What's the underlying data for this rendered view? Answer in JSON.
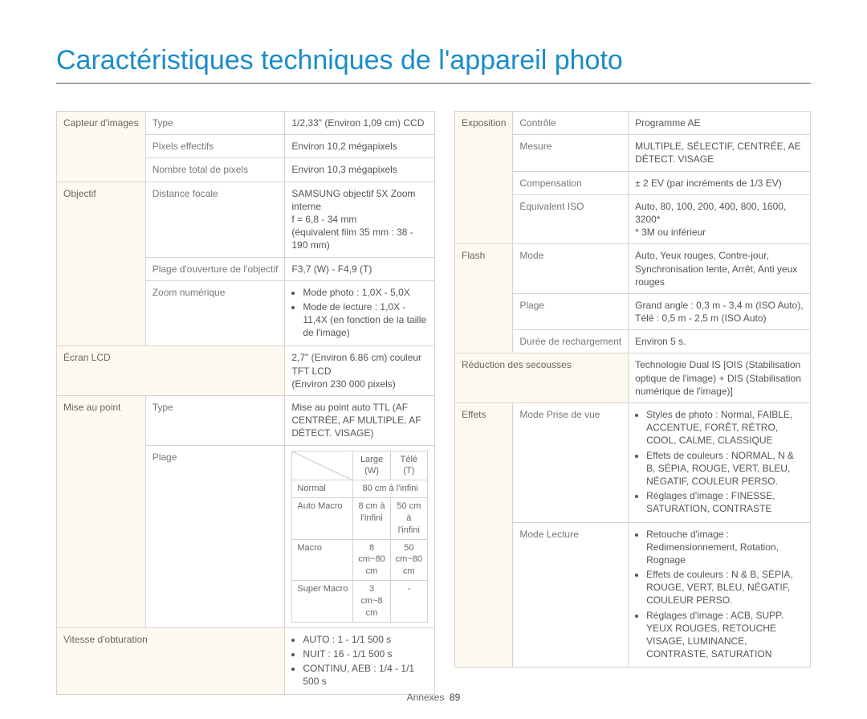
{
  "title": "Caractéristiques techniques de l'appareil photo",
  "footer": {
    "label": "Annexes",
    "page": "89"
  },
  "left": {
    "capteur": {
      "section": "Capteur d'images",
      "rows": [
        {
          "attr": "Type",
          "val": "1/2,33\" (Environ 1,09 cm) CCD"
        },
        {
          "attr": "Pixels effectifs",
          "val": "Environ 10,2 mégapixels"
        },
        {
          "attr": "Nombre total de pixels",
          "val": "Environ 10,3 mégapixels"
        }
      ]
    },
    "objectif": {
      "section": "Objectif",
      "rows": [
        {
          "attr": "Distance focale",
          "val": "SAMSUNG objectif 5X Zoom interne\nf = 6,8 - 34 mm\n(équivalent film 35 mm : 38 - 190 mm)"
        },
        {
          "attr": "Plage d'ouverture de l'objectif",
          "val": "F3,7 (W) - F4,9 (T)"
        },
        {
          "attr": "Zoom numérique",
          "bullets": [
            "Mode photo : 1,0X - 5,0X",
            "Mode de lecture : 1,0X - 11,4X (en fonction de la taille de l'image)"
          ]
        }
      ]
    },
    "ecran": {
      "section": "Écran LCD",
      "val": "2,7\" (Environ 6.86 cm) couleur TFT LCD\n(Environ 230 000 pixels)"
    },
    "mise": {
      "section": "Mise au point",
      "type_label": "Type",
      "type_val": "Mise au point auto TTL (AF CENTRÉE, AF MULTIPLE, AF DÉTECT. VISAGE)",
      "plage_label": "Plage",
      "range": {
        "cols": [
          "",
          "Large (W)",
          "Télé (T)"
        ],
        "rows": [
          {
            "h": "Normal",
            "w": "80 cm à l'infini",
            "t": "80 cm à l'infini",
            "merge": true
          },
          {
            "h": "Auto Macro",
            "w": "8 cm à l'infini",
            "t": "50 cm à l'infini"
          },
          {
            "h": "Macro",
            "w": "8 cm~80 cm",
            "t": "50 cm~80 cm"
          },
          {
            "h": "Super Macro",
            "w": "3 cm~8 cm",
            "t": "-"
          }
        ]
      }
    },
    "vitesse": {
      "section": "Vitesse d'obturation",
      "bullets": [
        "AUTO : 1 - 1/1 500 s",
        "NUIT : 16 - 1/1 500 s",
        "CONTINU, AEB : 1/4 - 1/1 500 s"
      ]
    }
  },
  "right": {
    "exposition": {
      "section": "Exposition",
      "rows": [
        {
          "attr": "Contrôle",
          "val": "Programme AE"
        },
        {
          "attr": "Mesure",
          "val": "MULTIPLE, SÉLECTIF, CENTRÉE, AE DÉTECT. VISAGE"
        },
        {
          "attr": "Compensation",
          "val": "± 2 EV (par incréments de 1/3 EV)"
        },
        {
          "attr": "Équivalent ISO",
          "val": "Auto, 80, 100, 200, 400, 800, 1600, 3200*\n* 3M ou inférieur"
        }
      ]
    },
    "flash": {
      "section": "Flash",
      "rows": [
        {
          "attr": "Mode",
          "val": "Auto, Yeux rouges, Contre-jour, Synchronisation lente, Arrêt, Anti yeux rouges"
        },
        {
          "attr": "Plage",
          "val": "Grand angle : 0,3 m - 3,4 m (ISO Auto),\nTélé : 0,5 m - 2,5 m (ISO Auto)"
        },
        {
          "attr": "Durée de rechargement",
          "val": "Environ 5 s."
        }
      ]
    },
    "reduction": {
      "section": "Réduction des secousses",
      "val": "Technologie Dual IS [OIS (Stabilisation optique de l'image) + DIS (Stabilisation numérique de l'image)]"
    },
    "effets": {
      "section": "Effets",
      "prise_label": "Mode Prise de vue",
      "prise_bullets": [
        "Styles de photo : Normal, FAIBLE, ACCENTUE, FORÊT, RÉTRO, COOL, CALME, CLASSIQUE",
        "Effets de couleurs : NORMAL, N & B, SÉPIA, ROUGE, VERT, BLEU, NÉGATIF, COULEUR PERSO.",
        "Réglages d'image : FINESSE, SATURATION, CONTRASTE"
      ],
      "lecture_label": "Mode Lecture",
      "lecture_bullets": [
        "Retouche d'image : Redimensionnement, Rotation, Rognage",
        "Effets de couleurs : N & B, SÉPIA, ROUGE, VERT, BLEU, NÉGATIF, COULEUR PERSO.",
        "Réglages d'image : ACB, SUPP. YEUX ROUGES, RETOUCHE VISAGE, LUMINANCE, CONTRASTE, SATURATION"
      ]
    }
  }
}
